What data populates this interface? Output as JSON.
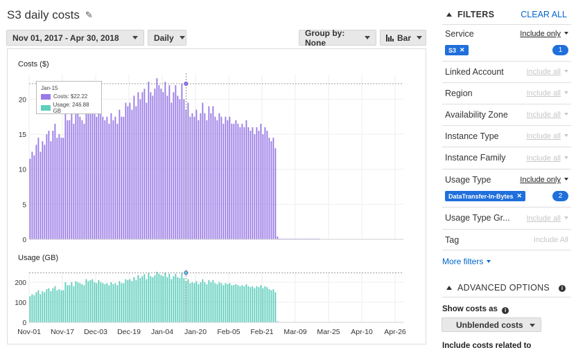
{
  "page": {
    "title": "S3 daily costs",
    "edit_icon": "pencil-icon"
  },
  "toolbar": {
    "date_range": "Nov 01, 2017 - Apr 30, 2018",
    "granularity": "Daily",
    "group_by": "Group by: None",
    "chart_type": "Bar",
    "chart_type_icon": "bar-chart-icon"
  },
  "tooltip": {
    "date": "Jan-15",
    "costs": "Costs: $22.22",
    "usage": "Usage: 246.88 GB"
  },
  "chart_data": [
    {
      "type": "bar",
      "title": "Costs ($)",
      "x_ticks": [
        "Nov-01",
        "Nov-17",
        "Dec-03",
        "Dec-19",
        "Jan-04",
        "Jan-20",
        "Feb-05",
        "Feb-21",
        "Mar-09",
        "Mar-25",
        "Apr-10",
        "Apr-26"
      ],
      "x_start": "2017-11-01",
      "x_end": "2018-04-30",
      "y_ticks": [
        0,
        5,
        10,
        15,
        20
      ],
      "ylim": [
        0,
        23.5
      ],
      "reference_line": 22.22,
      "highlight_date": "2018-01-15",
      "color": "#9a7be6",
      "values": [
        11.5,
        12.5,
        12,
        13.5,
        14.5,
        12.5,
        14,
        13.5,
        15,
        15.5,
        14,
        15.5,
        16.5,
        14.5,
        15,
        14.5,
        14.5,
        18,
        17,
        17,
        18,
        16.5,
        18.5,
        18,
        17.5,
        17,
        16.5,
        19.5,
        18.5,
        19,
        19.5,
        18,
        17.5,
        19,
        18,
        17.5,
        17,
        17.5,
        16.5,
        18,
        17,
        17.5,
        16.5,
        18.5,
        17.5,
        17.5,
        19.5,
        19,
        19.5,
        18.5,
        20.5,
        19,
        21,
        20,
        21,
        21.5,
        19.5,
        22.5,
        21,
        20.5,
        21.5,
        23,
        22,
        21.5,
        21,
        22.5,
        20.5,
        22,
        19.5,
        21,
        22,
        20.5,
        20,
        22.2,
        20,
        18.5,
        19.5,
        17.5,
        18,
        17.5,
        18.5,
        17,
        18,
        19.5,
        18,
        17,
        19,
        18,
        19,
        17.5,
        17,
        18,
        17.5,
        16.5,
        17.5,
        17,
        17.5,
        16.5,
        16.5,
        17,
        16.5,
        16,
        16.5,
        16,
        17,
        16,
        15.5,
        16,
        15,
        16,
        15.5,
        16.5,
        15,
        16,
        15.5,
        14.5,
        14,
        14.5,
        13,
        0.4,
        0.1,
        0.1,
        0.1,
        0.1,
        0.1,
        0.1,
        0.1,
        0.1,
        0.1,
        0.1,
        0.1,
        0.1,
        0.1,
        0.1,
        0.1,
        0.1,
        0.1,
        0.1,
        0.1,
        0.1
      ]
    },
    {
      "type": "bar",
      "title": "Usage (GB)",
      "x_ticks": [
        "Nov-01",
        "Nov-17",
        "Dec-03",
        "Dec-19",
        "Jan-04",
        "Jan-20",
        "Feb-05",
        "Feb-21",
        "Mar-09",
        "Mar-25",
        "Apr-10",
        "Apr-26"
      ],
      "x_start": "2017-11-01",
      "x_end": "2018-04-30",
      "y_ticks": [
        0,
        100,
        200
      ],
      "ylim": [
        0,
        255
      ],
      "reference_line": 246.88,
      "highlight_date": "2018-01-15",
      "color": "#5fcfbd",
      "values": [
        130,
        140,
        135,
        150,
        160,
        140,
        155,
        150,
        165,
        170,
        155,
        170,
        180,
        160,
        165,
        160,
        160,
        200,
        185,
        185,
        200,
        180,
        205,
        200,
        195,
        190,
        185,
        215,
        205,
        210,
        215,
        200,
        195,
        210,
        200,
        195,
        190,
        195,
        185,
        200,
        190,
        195,
        185,
        205,
        195,
        195,
        215,
        210,
        215,
        205,
        225,
        210,
        235,
        220,
        230,
        240,
        215,
        245,
        230,
        225,
        235,
        252,
        242,
        235,
        230,
        248,
        225,
        242,
        215,
        230,
        242,
        225,
        220,
        246.88,
        220,
        205,
        215,
        195,
        200,
        195,
        205,
        190,
        200,
        215,
        200,
        190,
        210,
        200,
        210,
        195,
        190,
        200,
        195,
        185,
        195,
        190,
        195,
        185,
        185,
        190,
        185,
        180,
        185,
        180,
        190,
        180,
        175,
        180,
        170,
        180,
        175,
        185,
        170,
        180,
        175,
        165,
        160,
        165,
        150,
        5,
        1,
        1,
        1,
        1,
        1,
        1,
        1,
        1,
        1,
        1,
        1,
        1,
        1,
        1,
        1,
        1,
        1,
        1,
        1,
        1
      ]
    }
  ],
  "filters": {
    "title": "FILTERS",
    "clear_all": "CLEAR ALL",
    "service": {
      "label": "Service",
      "mode": "Include only",
      "chip": "S3",
      "count": "1"
    },
    "linked_account": {
      "label": "Linked Account",
      "mode": "Include all"
    },
    "region": {
      "label": "Region",
      "mode": "Include all"
    },
    "availability_zone": {
      "label": "Availability Zone",
      "mode": "Include all"
    },
    "instance_type": {
      "label": "Instance Type",
      "mode": "Include all"
    },
    "instance_family": {
      "label": "Instance Family",
      "mode": "Include all"
    },
    "usage_type": {
      "label": "Usage Type",
      "mode": "Include only",
      "chip": "DataTransfer-In-Bytes",
      "count": "2"
    },
    "usage_type_group": {
      "label": "Usage Type Gr...",
      "mode": "Include all"
    },
    "tag": {
      "label": "Tag",
      "mode": "Include All"
    },
    "more_filters": "More filters"
  },
  "advanced": {
    "title": "ADVANCED OPTIONS",
    "show_costs_as": "Show costs as",
    "cost_type": "Unblended costs",
    "include_related": "Include costs related to"
  }
}
